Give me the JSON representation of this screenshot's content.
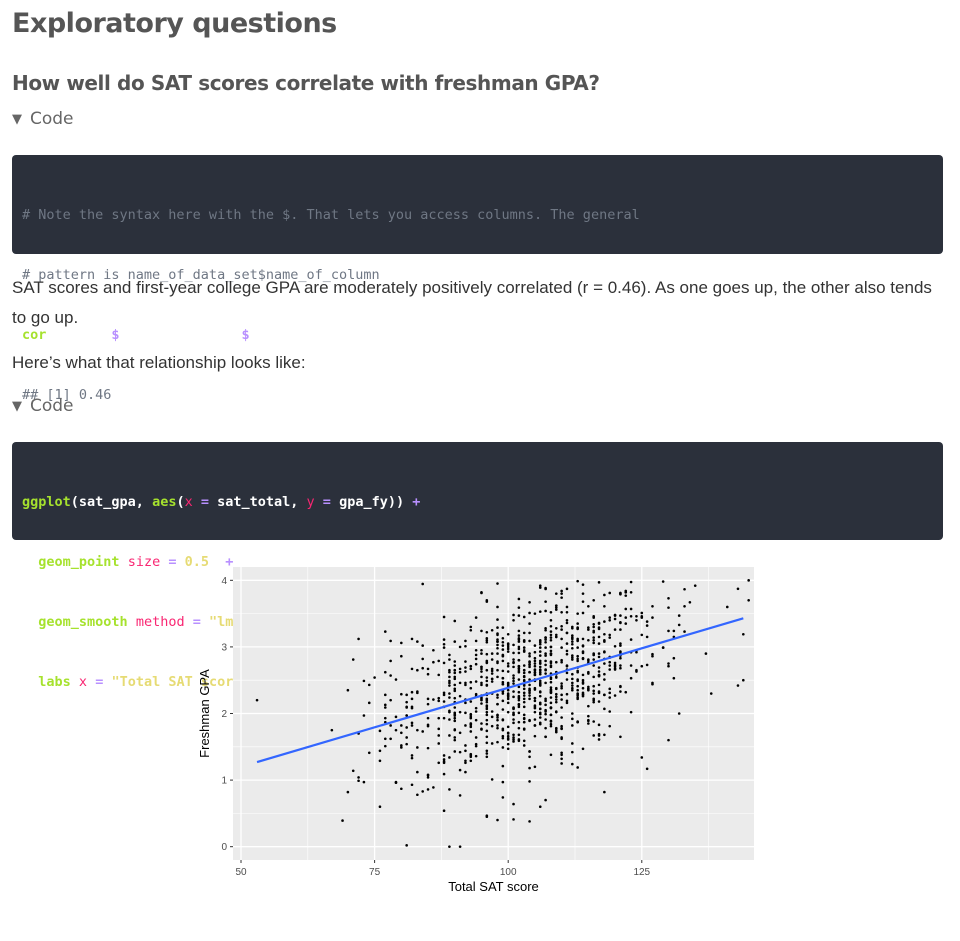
{
  "page": {
    "section_title": "Exploratory questions",
    "subsection_title": "How well do SAT scores correlate with freshman GPA?",
    "code_toggle_label": "Code",
    "code1": {
      "lines": [
        "# Note the syntax here with the $. That lets you access columns. The general",
        "# pattern is name_of_data_set$name_of_column",
        "cor(sat_gpa$gpa_fy, sat_gpa$sat_total)",
        "## [1] 0.46"
      ]
    },
    "paragraph1": "SAT scores and first-year college GPA are moderately positively correlated (r = 0.46). As one goes up, the other also tends to go up.",
    "paragraph2": "Here’s what that relationship looks like:",
    "code2": {
      "lines": [
        "ggplot(sat_gpa, aes(x = sat_total, y = gpa_fy)) +",
        "  geom_point(size = 0.5) +",
        "  geom_smooth(method = \"lm\", se = FALSE) +",
        "  labs(x = \"Total SAT score\", y = \"Freshman GPA\")"
      ]
    }
  },
  "colors": {
    "panel_bg": "#ebebeb",
    "grid": "#ffffff",
    "point": "#000000",
    "smooth_line": "#3366ff",
    "code_bg": "#2b303b"
  },
  "chart_data": {
    "type": "scatter",
    "xlabel": "Total SAT score",
    "ylabel": "Freshman GPA",
    "xlim": [
      48.5,
      146
    ],
    "ylim": [
      -0.2,
      4.2
    ],
    "x_ticks": [
      50,
      75,
      100,
      125
    ],
    "y_ticks": [
      0,
      1,
      2,
      3,
      4
    ],
    "grid": true,
    "fit_line": {
      "x": [
        53,
        144
      ],
      "y": [
        1.27,
        3.43
      ]
    },
    "n_points": 1000,
    "points": [
      [
        53,
        2.2
      ],
      [
        72,
        3.12
      ],
      [
        70,
        0.82
      ],
      [
        76,
        0.6
      ],
      [
        81,
        0.02
      ],
      [
        89,
        0.0
      ],
      [
        91,
        0.0
      ],
      [
        88,
        0.54
      ],
      [
        96,
        0.45
      ],
      [
        98,
        0.4
      ],
      [
        104,
        0.38
      ],
      [
        106,
        0.6
      ],
      [
        107,
        0.7
      ],
      [
        118,
        0.82
      ],
      [
        126,
        1.17
      ],
      [
        144,
        2.5
      ],
      [
        143,
        2.42
      ],
      [
        145,
        4.0
      ],
      [
        145,
        3.7
      ],
      [
        138,
        2.3
      ],
      [
        137,
        2.9
      ],
      [
        141,
        3.6
      ],
      [
        130,
        1.6
      ],
      [
        132,
        2.0
      ]
    ]
  }
}
